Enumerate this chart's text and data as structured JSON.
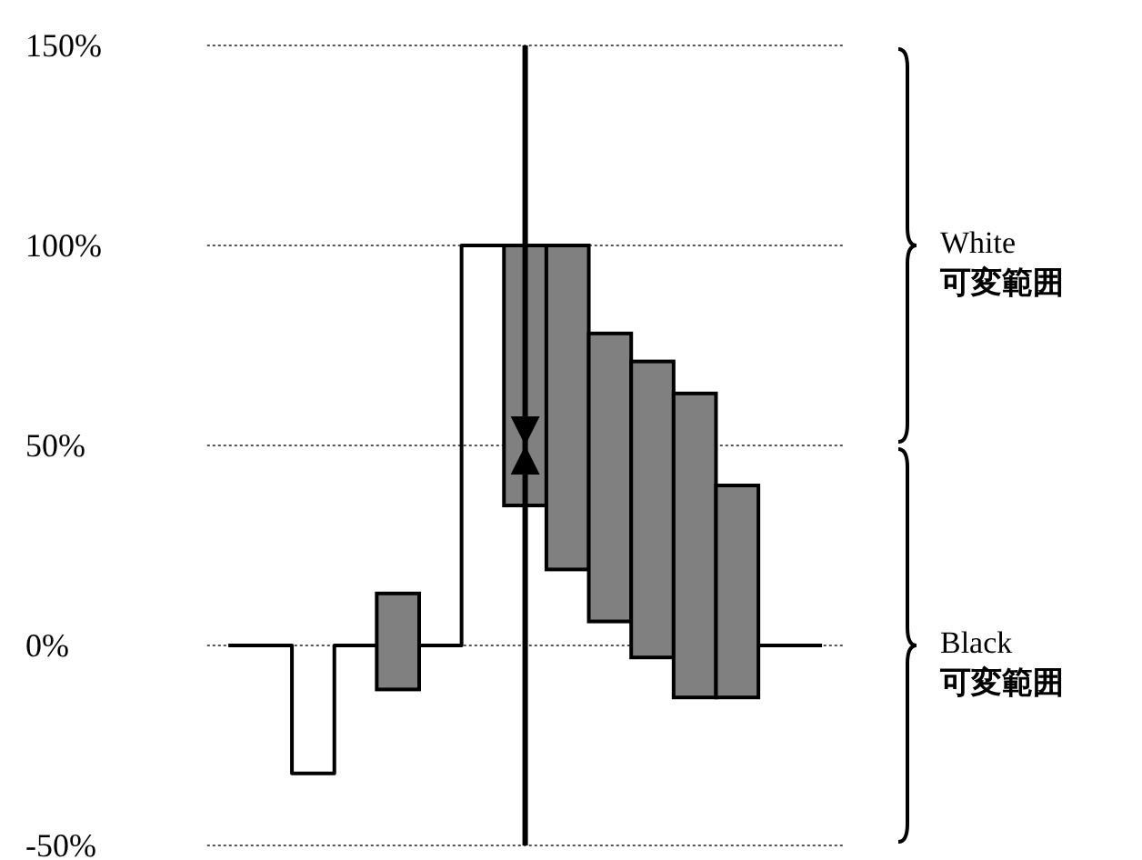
{
  "chart_data": {
    "type": "bar",
    "categories": [
      null,
      null,
      null,
      null,
      null,
      null,
      null,
      null,
      null,
      null,
      null,
      null,
      null,
      null,
      null
    ],
    "ylim": [
      -50,
      150
    ],
    "yticks": [
      {
        "value": -50,
        "label": "-50%"
      },
      {
        "value": 0,
        "label": "0%"
      },
      {
        "value": 50,
        "label": "50%"
      },
      {
        "value": 100,
        "label": "100%"
      },
      {
        "value": 150,
        "label": "150%"
      }
    ],
    "grid": "y",
    "tick_labels": "y",
    "series": [
      {
        "type": "step",
        "color": "#000000",
        "values": [
          0,
          0,
          -32,
          0,
          0,
          0,
          100,
          null,
          null,
          null,
          null,
          null,
          null,
          0,
          0
        ]
      },
      {
        "color": "#808080",
        "base": [
          null,
          null,
          null,
          null,
          -11,
          null,
          null,
          35,
          19,
          6,
          -3,
          -13,
          -13,
          null,
          null
        ],
        "values": [
          null,
          null,
          null,
          null,
          24,
          null,
          null,
          65,
          81,
          72,
          74,
          76,
          53,
          null,
          null
        ]
      }
    ],
    "annotations": [
      "White 可変範囲",
      "Black 可変範囲"
    ]
  }
}
